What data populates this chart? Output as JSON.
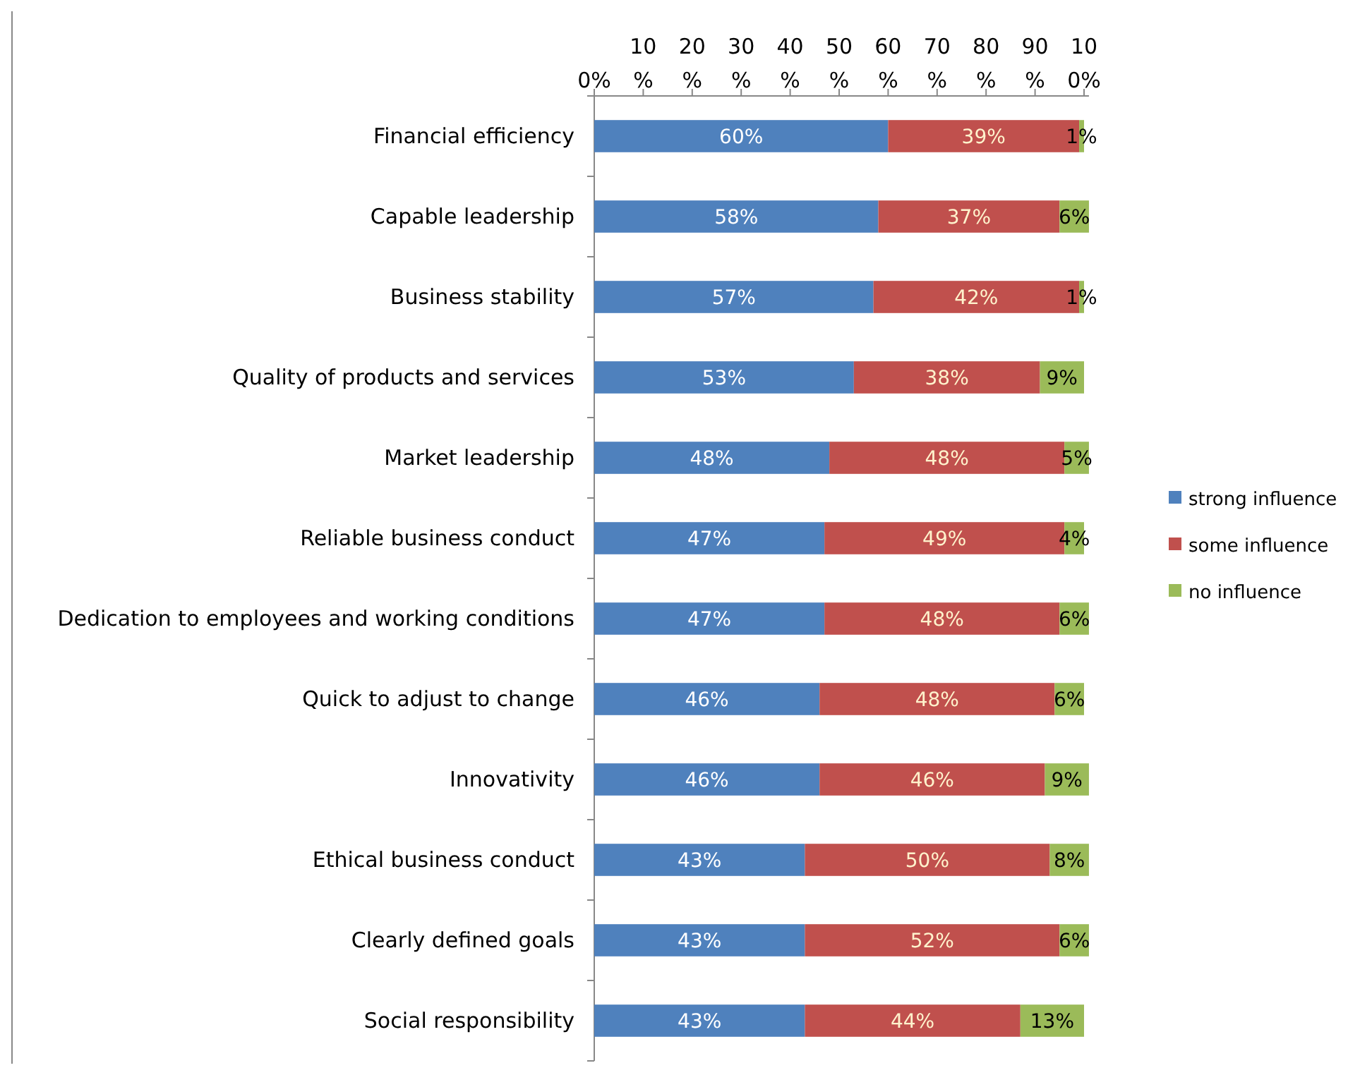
{
  "chart_data": {
    "type": "bar",
    "orientation": "horizontal",
    "stacked": true,
    "categories": [
      "Financial efficiency",
      "Capable leadership",
      "Business stability",
      "Quality of products and services",
      "Market leadership",
      "Reliable business conduct",
      "Dedication to employees and working conditions",
      "Quick to adjust to change",
      "Innovativity",
      "Ethical business conduct",
      "Clearly defined goals",
      "Social responsibility"
    ],
    "series": [
      {
        "name": "strong influence",
        "color": "#4f81bd",
        "values": [
          60,
          58,
          57,
          53,
          48,
          47,
          47,
          46,
          46,
          43,
          43,
          43
        ],
        "value_labels": [
          "60%",
          "58%",
          "57%",
          "53%",
          "48%",
          "47%",
          "47%",
          "46%",
          "46%",
          "43%",
          "43%",
          "43%"
        ]
      },
      {
        "name": "some influence",
        "color": "#c0504d",
        "values": [
          39,
          37,
          42,
          38,
          48,
          49,
          48,
          48,
          46,
          50,
          52,
          44
        ],
        "value_labels": [
          "39%",
          "37%",
          "42%",
          "38%",
          "48%",
          "49%",
          "48%",
          "48%",
          "46%",
          "50%",
          "52%",
          "44%"
        ]
      },
      {
        "name": "no influence",
        "color": "#9bbb59",
        "values": [
          1,
          6,
          1,
          9,
          5,
          4,
          6,
          6,
          9,
          8,
          6,
          13
        ],
        "value_labels": [
          "1%",
          "6%",
          "1%",
          "9%",
          "5%",
          "4%",
          "6%",
          "6%",
          "9%",
          "8%",
          "6%",
          "13%"
        ]
      }
    ],
    "xlim": [
      0,
      101
    ],
    "xticks": [
      {
        "value": 0,
        "label": "0%"
      },
      {
        "value": 10,
        "label": "10%"
      },
      {
        "value": 20,
        "label": "20%"
      },
      {
        "value": 30,
        "label": "30%"
      },
      {
        "value": 40,
        "label": "40%"
      },
      {
        "value": 50,
        "label": "50%"
      },
      {
        "value": 60,
        "label": "60%"
      },
      {
        "value": 70,
        "label": "70%"
      },
      {
        "value": 80,
        "label": "80%"
      },
      {
        "value": 90,
        "label": "90%"
      },
      {
        "value": 100,
        "label": "100%"
      }
    ],
    "grid": false,
    "legend": "right"
  }
}
